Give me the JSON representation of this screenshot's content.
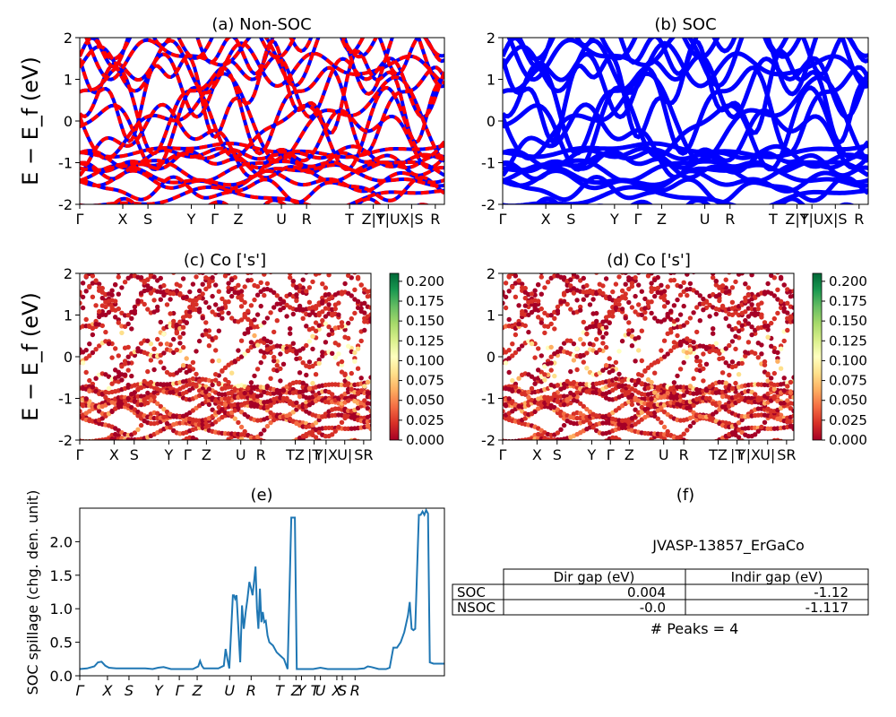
{
  "chart_data": [
    {
      "id": "a",
      "type": "line",
      "title": "(a) Non-SOC",
      "ylabel": "E − E_f (eV)",
      "ylim": [
        -2,
        2
      ],
      "yticks": [
        -2,
        -1,
        0,
        1,
        2
      ],
      "kticks": [
        {
          "label": "Γ",
          "pos": 0.0
        },
        {
          "label": "X",
          "pos": 0.118
        },
        {
          "label": "S",
          "pos": 0.187
        },
        {
          "label": "Y",
          "pos": 0.306
        },
        {
          "label": "Γ",
          "pos": 0.37
        },
        {
          "label": "Z",
          "pos": 0.435
        },
        {
          "label": "U",
          "pos": 0.553
        },
        {
          "label": "R",
          "pos": 0.622
        },
        {
          "label": "T",
          "pos": 0.74
        },
        {
          "label": "Z|Y",
          "pos": 0.805
        },
        {
          "label": "T|U",
          "pos": 0.846
        },
        {
          "label": "X|S",
          "pos": 0.91
        },
        {
          "label": "R",
          "pos": 0.975
        }
      ],
      "series": [
        {
          "color": "#0000ff",
          "width": 4
        },
        {
          "color": "#ff0000",
          "width": 4,
          "dash": "9 6"
        }
      ]
    },
    {
      "id": "b",
      "type": "line",
      "title": "(b) SOC",
      "ylim": [
        -2,
        2
      ],
      "yticks": [
        -2,
        -1,
        0,
        1,
        2
      ],
      "kticks": [
        {
          "label": "Γ",
          "pos": 0.0
        },
        {
          "label": "X",
          "pos": 0.118
        },
        {
          "label": "S",
          "pos": 0.187
        },
        {
          "label": "Y",
          "pos": 0.306
        },
        {
          "label": "Γ",
          "pos": 0.37
        },
        {
          "label": "Z",
          "pos": 0.435
        },
        {
          "label": "U",
          "pos": 0.553
        },
        {
          "label": "R",
          "pos": 0.622
        },
        {
          "label": "T",
          "pos": 0.74
        },
        {
          "label": "Z|Y",
          "pos": 0.805
        },
        {
          "label": "T|U",
          "pos": 0.846
        },
        {
          "label": "X|S",
          "pos": 0.91
        },
        {
          "label": "R",
          "pos": 0.975
        }
      ],
      "series": [
        {
          "color": "#0000ff",
          "width": 5
        }
      ]
    },
    {
      "id": "c",
      "type": "scatter",
      "title": "(c)  Co ['s']",
      "ylabel": "E − E_f (eV)",
      "ylim": [
        -2,
        2
      ],
      "yticks": [
        -2,
        -1,
        0,
        1,
        2
      ],
      "colorbar": {
        "colormap": "RdYlGn",
        "min": 0.0,
        "max": 0.21,
        "ticks": [
          "0.000",
          "0.025",
          "0.050",
          "0.075",
          "0.100",
          "0.125",
          "0.150",
          "0.175",
          "0.200"
        ]
      },
      "kticks": [
        {
          "label": "Γ",
          "pos": 0.0
        },
        {
          "label": "X",
          "pos": 0.118
        },
        {
          "label": "S",
          "pos": 0.187
        },
        {
          "label": "Y",
          "pos": 0.306
        },
        {
          "label": "Γ",
          "pos": 0.37
        },
        {
          "label": "Z",
          "pos": 0.435
        },
        {
          "label": "U",
          "pos": 0.553
        },
        {
          "label": "R",
          "pos": 0.622
        },
        {
          "label": "TZ",
          "pos": 0.74
        },
        {
          "label": "|T",
          "pos": 0.805
        },
        {
          "label": "Y|X",
          "pos": 0.846
        },
        {
          "label": "U|",
          "pos": 0.91
        },
        {
          "label": "SR",
          "pos": 0.975
        }
      ]
    },
    {
      "id": "d",
      "type": "scatter",
      "title": "(d) Co ['s']",
      "ylim": [
        -2,
        2
      ],
      "yticks": [
        -2,
        -1,
        0,
        1,
        2
      ],
      "colorbar": {
        "colormap": "RdYlGn",
        "min": 0.0,
        "max": 0.21,
        "ticks": [
          "0.000",
          "0.025",
          "0.050",
          "0.075",
          "0.100",
          "0.125",
          "0.150",
          "0.175",
          "0.200"
        ]
      },
      "kticks": [
        {
          "label": "Γ",
          "pos": 0.0
        },
        {
          "label": "X",
          "pos": 0.118
        },
        {
          "label": "S",
          "pos": 0.187
        },
        {
          "label": "Y",
          "pos": 0.306
        },
        {
          "label": "Γ",
          "pos": 0.37
        },
        {
          "label": "Z",
          "pos": 0.435
        },
        {
          "label": "U",
          "pos": 0.553
        },
        {
          "label": "R",
          "pos": 0.622
        },
        {
          "label": "TZ",
          "pos": 0.74
        },
        {
          "label": "|T",
          "pos": 0.805
        },
        {
          "label": "Y|X",
          "pos": 0.846
        },
        {
          "label": "U|",
          "pos": 0.91
        },
        {
          "label": "SR",
          "pos": 0.975
        }
      ]
    },
    {
      "id": "e",
      "type": "line",
      "title": "(e)",
      "ylabel": "SOC spillage (chg. den. unit)",
      "ylim": [
        0,
        2.5
      ],
      "yticks": [
        "0.0",
        "0.5",
        "1.0",
        "1.5",
        "2.0"
      ],
      "kticks": [
        {
          "label": "Γ",
          "pos": 0.0
        },
        {
          "label": "X",
          "pos": 0.076
        },
        {
          "label": "S",
          "pos": 0.135
        },
        {
          "label": "Y",
          "pos": 0.216
        },
        {
          "label": "Γ",
          "pos": 0.273
        },
        {
          "label": "Z",
          "pos": 0.322
        },
        {
          "label": "U",
          "pos": 0.411
        },
        {
          "label": "R",
          "pos": 0.47
        },
        {
          "label": "T",
          "pos": 0.548
        },
        {
          "label": "Z",
          "pos": 0.593
        },
        {
          "label": "Y",
          "pos": 0.608
        },
        {
          "label": "T",
          "pos": 0.645
        },
        {
          "label": "U",
          "pos": 0.66
        },
        {
          "label": "X",
          "pos": 0.705
        },
        {
          "label": "S",
          "pos": 0.72
        },
        {
          "label": "R",
          "pos": 0.755
        }
      ],
      "x": [
        0,
        0.02,
        0.04,
        0.05,
        0.06,
        0.07,
        0.08,
        0.1,
        0.12,
        0.14,
        0.16,
        0.18,
        0.2,
        0.215,
        0.23,
        0.25,
        0.27,
        0.29,
        0.31,
        0.325,
        0.33,
        0.335,
        0.34,
        0.36,
        0.38,
        0.395,
        0.4,
        0.405,
        0.41,
        0.42,
        0.423,
        0.426,
        0.43,
        0.44,
        0.445,
        0.45,
        0.455,
        0.46,
        0.465,
        0.47,
        0.474,
        0.478,
        0.482,
        0.486,
        0.49,
        0.494,
        0.498,
        0.502,
        0.506,
        0.51,
        0.515,
        0.52,
        0.53,
        0.54,
        0.55,
        0.56,
        0.57,
        0.58,
        0.585,
        0.59,
        0.595,
        0.6,
        0.605,
        0.61,
        0.62,
        0.64,
        0.66,
        0.68,
        0.7,
        0.72,
        0.74,
        0.76,
        0.78,
        0.79,
        0.8,
        0.82,
        0.84,
        0.85,
        0.86,
        0.87,
        0.88,
        0.89,
        0.9,
        0.905,
        0.91,
        0.915,
        0.92,
        0.93,
        0.935,
        0.94,
        0.945,
        0.95,
        0.955,
        0.96,
        0.97,
        0.98,
        1.0
      ],
      "y": [
        0.1,
        0.11,
        0.14,
        0.2,
        0.21,
        0.15,
        0.12,
        0.11,
        0.11,
        0.11,
        0.11,
        0.11,
        0.1,
        0.12,
        0.13,
        0.1,
        0.1,
        0.1,
        0.1,
        0.14,
        0.22,
        0.15,
        0.11,
        0.11,
        0.11,
        0.15,
        0.4,
        0.25,
        0.11,
        1.2,
        1.2,
        1.15,
        1.2,
        0.2,
        1.05,
        0.7,
        0.95,
        1.15,
        1.4,
        1.3,
        1.2,
        1.4,
        1.63,
        1.0,
        0.7,
        1.3,
        0.8,
        0.95,
        0.8,
        0.82,
        0.6,
        0.5,
        0.45,
        0.35,
        0.3,
        0.25,
        0.1,
        2.36,
        2.36,
        2.36,
        0.1,
        0.1,
        0.1,
        0.1,
        0.1,
        0.1,
        0.12,
        0.1,
        0.1,
        0.1,
        0.1,
        0.1,
        0.11,
        0.14,
        0.13,
        0.1,
        0.1,
        0.12,
        0.42,
        0.42,
        0.5,
        0.65,
        0.9,
        1.1,
        0.7,
        0.68,
        0.7,
        2.4,
        2.4,
        2.45,
        2.4,
        2.47,
        2.42,
        0.2,
        0.18,
        0.18,
        0.18
      ]
    }
  ],
  "panel_f": {
    "title": "(f)",
    "material": "JVASP-13857_ErGaCo",
    "table": {
      "headers": [
        "",
        "Dir gap (eV)",
        "Indir gap (eV)"
      ],
      "rows": [
        [
          "SOC",
          "0.004",
          "-1.12"
        ],
        [
          "NSOC",
          "-0.0",
          "-1.117"
        ]
      ]
    },
    "peaks": "# Peaks = 4"
  }
}
